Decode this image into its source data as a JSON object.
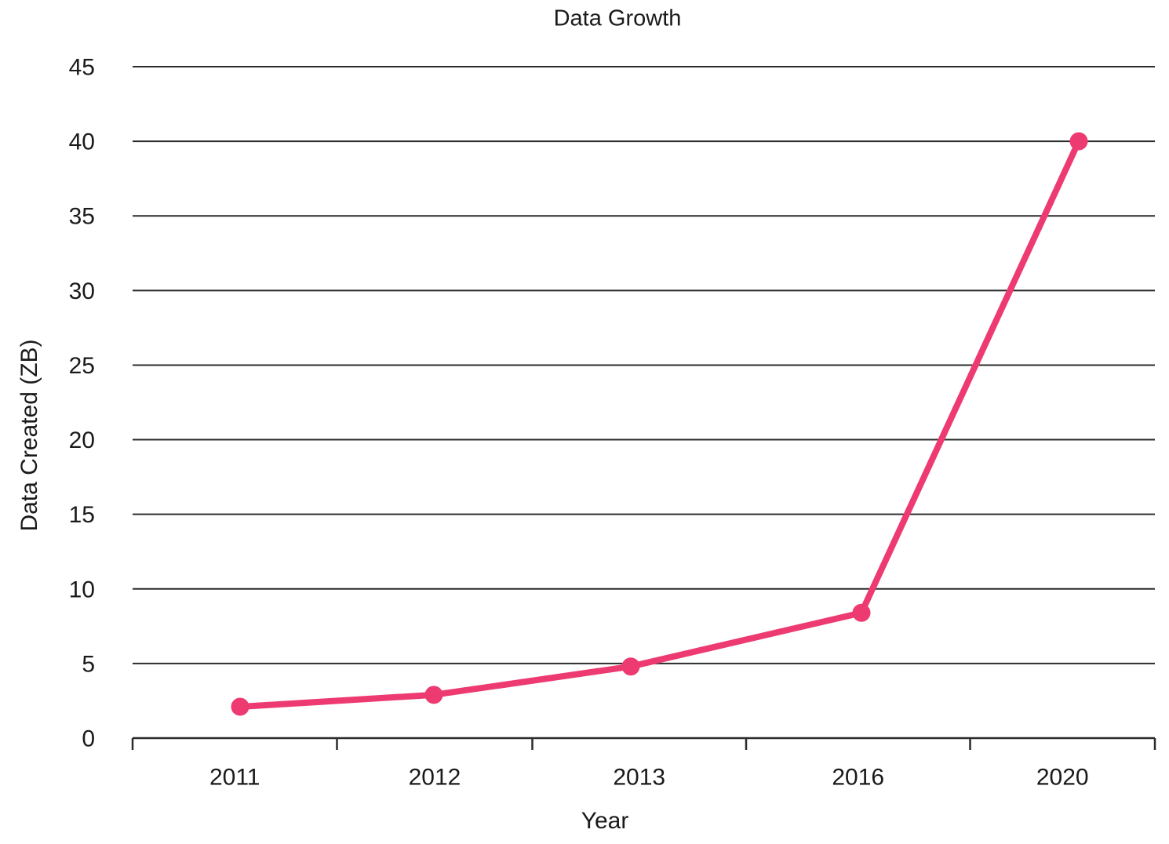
{
  "chart_data": {
    "type": "line",
    "title": "Data Growth",
    "xlabel": "Year",
    "ylabel": "Data Created (ZB)",
    "categories": [
      "2011",
      "2012",
      "2013",
      "2016",
      "2020"
    ],
    "series": [
      {
        "name": "Data Created (ZB)",
        "values": [
          2.1,
          2.9,
          4.8,
          8.4,
          40
        ]
      }
    ],
    "ylim": [
      0,
      45
    ],
    "yticks": [
      0,
      5,
      10,
      15,
      20,
      25,
      30,
      35,
      40,
      45
    ],
    "grid": "horizontal",
    "legend": "none",
    "line_color": "#ED3B72",
    "marker": "circle",
    "axis_color": "#2B2B2B",
    "text_color": "#1A1A1A"
  }
}
